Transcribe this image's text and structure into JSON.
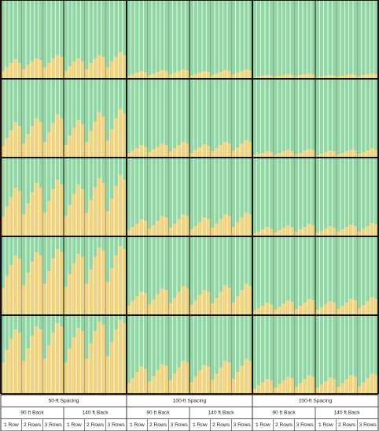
{
  "chart_data": {
    "type": "heatmap",
    "colors": {
      "green": "#8fd8a4",
      "yellow": "#f2d27a",
      "cell_line": "#ffffff",
      "heavy_line": "#111111",
      "row_line": "#333333",
      "edge_red": "#d03a2a",
      "edge_blue": "#2a3a9a"
    },
    "header": {
      "spacings": [
        "50-ft Spacing",
        "100-ft Spacing",
        "200-ft Spacing"
      ],
      "backs": [
        "90 ft Back",
        "140 ft Back"
      ],
      "rows": [
        "1 Row",
        "2 Rows",
        "3 Rows"
      ]
    },
    "bands": 5,
    "strips_per_column": 5,
    "yellow_fraction": [
      [
        [
          0.1,
          0.15,
          0.2,
          0.25,
          0.2
        ],
        [
          0.12,
          0.18,
          0.22,
          0.26,
          0.24
        ],
        [
          0.14,
          0.2,
          0.26,
          0.3,
          0.28
        ],
        [
          0.1,
          0.16,
          0.22,
          0.26,
          0.22
        ],
        [
          0.12,
          0.2,
          0.26,
          0.3,
          0.28
        ],
        [
          0.14,
          0.22,
          0.28,
          0.34,
          0.3
        ],
        [
          0.04,
          0.06,
          0.08,
          0.1,
          0.08
        ],
        [
          0.05,
          0.07,
          0.09,
          0.11,
          0.1
        ],
        [
          0.06,
          0.08,
          0.1,
          0.12,
          0.11
        ],
        [
          0.04,
          0.06,
          0.08,
          0.1,
          0.09
        ],
        [
          0.05,
          0.07,
          0.09,
          0.11,
          0.1
        ],
        [
          0.06,
          0.08,
          0.1,
          0.12,
          0.11
        ],
        [
          0.02,
          0.03,
          0.04,
          0.05,
          0.04
        ],
        [
          0.03,
          0.04,
          0.05,
          0.06,
          0.05
        ],
        [
          0.03,
          0.05,
          0.06,
          0.07,
          0.06
        ],
        [
          0.02,
          0.03,
          0.04,
          0.05,
          0.04
        ],
        [
          0.03,
          0.04,
          0.05,
          0.06,
          0.05
        ],
        [
          0.03,
          0.05,
          0.06,
          0.07,
          0.06
        ]
      ],
      [
        [
          0.15,
          0.25,
          0.35,
          0.45,
          0.4
        ],
        [
          0.18,
          0.3,
          0.4,
          0.5,
          0.45
        ],
        [
          0.2,
          0.32,
          0.44,
          0.55,
          0.5
        ],
        [
          0.16,
          0.28,
          0.38,
          0.48,
          0.42
        ],
        [
          0.2,
          0.34,
          0.46,
          0.58,
          0.52
        ],
        [
          0.22,
          0.36,
          0.5,
          0.62,
          0.56
        ],
        [
          0.06,
          0.09,
          0.12,
          0.16,
          0.14
        ],
        [
          0.07,
          0.11,
          0.14,
          0.18,
          0.16
        ],
        [
          0.08,
          0.12,
          0.16,
          0.2,
          0.18
        ],
        [
          0.06,
          0.1,
          0.13,
          0.17,
          0.15
        ],
        [
          0.08,
          0.12,
          0.16,
          0.2,
          0.18
        ],
        [
          0.09,
          0.13,
          0.18,
          0.22,
          0.2
        ],
        [
          0.03,
          0.05,
          0.06,
          0.08,
          0.07
        ],
        [
          0.04,
          0.06,
          0.08,
          0.1,
          0.08
        ],
        [
          0.04,
          0.06,
          0.09,
          0.11,
          0.1
        ],
        [
          0.03,
          0.05,
          0.07,
          0.09,
          0.08
        ],
        [
          0.04,
          0.06,
          0.08,
          0.1,
          0.09
        ],
        [
          0.05,
          0.07,
          0.09,
          0.12,
          0.1
        ]
      ],
      [
        [
          0.25,
          0.38,
          0.5,
          0.62,
          0.58
        ],
        [
          0.28,
          0.42,
          0.56,
          0.68,
          0.62
        ],
        [
          0.3,
          0.45,
          0.6,
          0.72,
          0.66
        ],
        [
          0.26,
          0.4,
          0.54,
          0.66,
          0.6
        ],
        [
          0.3,
          0.46,
          0.62,
          0.74,
          0.68
        ],
        [
          0.32,
          0.48,
          0.64,
          0.78,
          0.72
        ],
        [
          0.08,
          0.12,
          0.16,
          0.22,
          0.2
        ],
        [
          0.1,
          0.14,
          0.2,
          0.26,
          0.24
        ],
        [
          0.11,
          0.16,
          0.22,
          0.28,
          0.26
        ],
        [
          0.09,
          0.13,
          0.18,
          0.24,
          0.22
        ],
        [
          0.11,
          0.16,
          0.22,
          0.28,
          0.26
        ],
        [
          0.12,
          0.18,
          0.24,
          0.3,
          0.28
        ],
        [
          0.04,
          0.06,
          0.09,
          0.12,
          0.1
        ],
        [
          0.05,
          0.08,
          0.11,
          0.14,
          0.12
        ],
        [
          0.06,
          0.09,
          0.12,
          0.16,
          0.14
        ],
        [
          0.05,
          0.07,
          0.1,
          0.13,
          0.11
        ],
        [
          0.06,
          0.09,
          0.12,
          0.15,
          0.13
        ],
        [
          0.06,
          0.1,
          0.13,
          0.17,
          0.15
        ]
      ],
      [
        [
          0.35,
          0.5,
          0.64,
          0.76,
          0.72
        ],
        [
          0.38,
          0.54,
          0.68,
          0.8,
          0.76
        ],
        [
          0.4,
          0.56,
          0.72,
          0.84,
          0.8
        ],
        [
          0.36,
          0.52,
          0.66,
          0.78,
          0.74
        ],
        [
          0.4,
          0.58,
          0.74,
          0.86,
          0.82
        ],
        [
          0.42,
          0.6,
          0.76,
          0.88,
          0.84
        ],
        [
          0.12,
          0.18,
          0.24,
          0.3,
          0.28
        ],
        [
          0.14,
          0.2,
          0.27,
          0.34,
          0.32
        ],
        [
          0.15,
          0.22,
          0.3,
          0.37,
          0.34
        ],
        [
          0.13,
          0.19,
          0.26,
          0.32,
          0.3
        ],
        [
          0.15,
          0.22,
          0.3,
          0.38,
          0.35
        ],
        [
          0.16,
          0.24,
          0.32,
          0.4,
          0.37
        ],
        [
          0.06,
          0.09,
          0.12,
          0.16,
          0.14
        ],
        [
          0.07,
          0.11,
          0.15,
          0.19,
          0.17
        ],
        [
          0.08,
          0.12,
          0.16,
          0.21,
          0.19
        ],
        [
          0.07,
          0.1,
          0.14,
          0.18,
          0.16
        ],
        [
          0.08,
          0.12,
          0.16,
          0.21,
          0.19
        ],
        [
          0.09,
          0.13,
          0.18,
          0.23,
          0.21
        ]
      ],
      [
        [
          0.4,
          0.56,
          0.7,
          0.82,
          0.78
        ],
        [
          0.42,
          0.58,
          0.74,
          0.86,
          0.82
        ],
        [
          0.45,
          0.62,
          0.78,
          0.9,
          0.86
        ],
        [
          0.4,
          0.58,
          0.72,
          0.84,
          0.8
        ],
        [
          0.45,
          0.64,
          0.8,
          0.92,
          0.88
        ],
        [
          0.48,
          0.66,
          0.82,
          0.94,
          0.9
        ],
        [
          0.14,
          0.2,
          0.28,
          0.35,
          0.32
        ],
        [
          0.16,
          0.23,
          0.31,
          0.38,
          0.36
        ],
        [
          0.18,
          0.26,
          0.34,
          0.42,
          0.4
        ],
        [
          0.15,
          0.22,
          0.3,
          0.37,
          0.35
        ],
        [
          0.18,
          0.26,
          0.34,
          0.42,
          0.4
        ],
        [
          0.19,
          0.28,
          0.36,
          0.45,
          0.42
        ],
        [
          0.07,
          0.11,
          0.15,
          0.19,
          0.17
        ],
        [
          0.08,
          0.13,
          0.17,
          0.22,
          0.2
        ],
        [
          0.09,
          0.14,
          0.19,
          0.24,
          0.22
        ],
        [
          0.08,
          0.12,
          0.16,
          0.21,
          0.19
        ],
        [
          0.09,
          0.14,
          0.19,
          0.24,
          0.22
        ],
        [
          0.1,
          0.15,
          0.2,
          0.26,
          0.24
        ]
      ]
    ]
  }
}
